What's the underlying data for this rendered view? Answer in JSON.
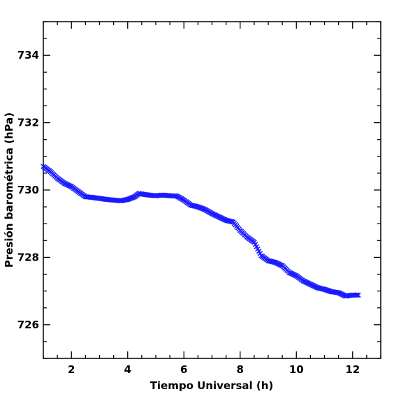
{
  "chart_data": {
    "type": "scatter",
    "title": "",
    "xlabel": "Tiempo Universal (h)",
    "ylabel": "Presión barométrica (hPa)",
    "xlim": [
      1,
      13
    ],
    "ylim": [
      725,
      735
    ],
    "x_ticks": [
      2,
      4,
      6,
      8,
      10,
      12
    ],
    "y_ticks": [
      726,
      728,
      730,
      732,
      734
    ],
    "grid": false,
    "marker": "x",
    "color": "#1a1aff",
    "series": [
      {
        "x": [
          1.0,
          1.25,
          1.5,
          1.75,
          2.0,
          2.25,
          2.5,
          2.75,
          3.0,
          3.25,
          3.5,
          3.75,
          4.0,
          4.25,
          4.4,
          4.5,
          4.75,
          5.0,
          5.25,
          5.5,
          5.75,
          6.0,
          6.25,
          6.5,
          6.75,
          7.0,
          7.25,
          7.5,
          7.75,
          8.0,
          8.25,
          8.5,
          8.75,
          9.0,
          9.25,
          9.5,
          9.75,
          10.0,
          10.25,
          10.5,
          10.75,
          11.0,
          11.25,
          11.5,
          11.75,
          12.0,
          12.2
        ],
        "y": [
          730.7,
          730.55,
          730.35,
          730.2,
          730.1,
          729.95,
          729.8,
          729.78,
          729.75,
          729.72,
          729.7,
          729.68,
          729.72,
          729.8,
          729.9,
          729.88,
          729.85,
          729.83,
          729.85,
          729.83,
          729.82,
          729.7,
          729.55,
          729.5,
          729.42,
          729.3,
          729.2,
          729.1,
          729.05,
          728.8,
          728.6,
          728.45,
          728.05,
          727.9,
          727.85,
          727.75,
          727.55,
          727.45,
          727.3,
          727.2,
          727.1,
          727.05,
          726.98,
          726.95,
          726.85,
          726.88,
          726.88
        ]
      }
    ]
  }
}
